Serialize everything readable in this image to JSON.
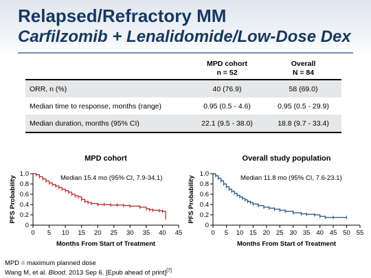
{
  "title": "Relapsed/Refractory MM",
  "subtitle": "Carfilzomib + Lenalidomide/Low-Dose Dex",
  "table": {
    "headers": [
      {
        "line1": "",
        "line2": ""
      },
      {
        "line1": "MPD cohort",
        "line2": "n = 52"
      },
      {
        "line1": "Overall",
        "line2": "N = 84"
      }
    ],
    "rows": [
      {
        "label": "ORR, n (%)",
        "mpd": "40 (76.9)",
        "overall": "58 (69.0)"
      },
      {
        "label": "Median time to response, months (range)",
        "mpd": "0.95 (0.5 - 4.6)",
        "overall": "0.95 (0.5 - 29.9)"
      },
      {
        "label": "Median duration, months (95% CI)",
        "mpd": "22.1 (9.5 - 38.0)",
        "overall": "18.8 (9.7 - 33.4)"
      }
    ]
  },
  "chart_data": [
    {
      "type": "line",
      "title": "MPD cohort",
      "annotation": "Median 15.4 mo (95% CI, 7.9-34.1)",
      "xlabel": "Months From Start of Treatment",
      "ylabel": "PFS Probability",
      "xlim": [
        0,
        45
      ],
      "ylim": [
        0,
        1.0
      ],
      "xticks": [
        0,
        5,
        10,
        15,
        20,
        25,
        30,
        35,
        40,
        45
      ],
      "yticks": [
        0,
        0.2,
        0.4,
        0.6,
        0.8,
        1.0
      ],
      "ytick_labels": [
        "0",
        "0.2",
        "0.4",
        "0.6",
        "0.8",
        "1.0"
      ],
      "color": "#b22222",
      "series": [
        {
          "x": [
            0,
            1,
            2,
            3,
            4,
            5,
            6,
            7,
            8,
            9,
            10,
            11,
            12,
            13,
            14,
            15,
            16,
            17,
            18,
            20,
            22,
            24,
            26,
            28,
            30,
            33,
            35,
            36,
            37,
            39,
            40,
            41
          ],
          "y": [
            1.0,
            0.98,
            0.94,
            0.9,
            0.86,
            0.82,
            0.79,
            0.76,
            0.73,
            0.7,
            0.67,
            0.64,
            0.6,
            0.57,
            0.55,
            0.5,
            0.46,
            0.44,
            0.42,
            0.4,
            0.4,
            0.39,
            0.39,
            0.38,
            0.37,
            0.35,
            0.32,
            0.3,
            0.29,
            0.28,
            0.27,
            0.14
          ]
        }
      ]
    },
    {
      "type": "line",
      "title": "Overall study population",
      "annotation": "Median 11.8 mo (95% CI, 7.6-23.1)",
      "xlabel": "Months From Start of Treatment",
      "ylabel": "PFS Probability",
      "xlim": [
        0,
        55
      ],
      "ylim": [
        0,
        1.0
      ],
      "xticks": [
        0,
        5,
        10,
        15,
        20,
        25,
        30,
        35,
        40,
        45,
        50,
        55
      ],
      "yticks": [
        0,
        0.2,
        0.4,
        0.6,
        0.8,
        1.0
      ],
      "ytick_labels": [
        "0",
        "0.2",
        "0.4",
        "0.6",
        "0.8",
        "1.0"
      ],
      "color": "#1f4e79",
      "series": [
        {
          "x": [
            0,
            1,
            2,
            3,
            4,
            5,
            6,
            7,
            8,
            9,
            10,
            11,
            12,
            13,
            14,
            15,
            17,
            19,
            21,
            23,
            25,
            27,
            30,
            33,
            35,
            38,
            40,
            42,
            45,
            50
          ],
          "y": [
            1.0,
            0.96,
            0.91,
            0.86,
            0.8,
            0.75,
            0.7,
            0.66,
            0.62,
            0.58,
            0.55,
            0.52,
            0.49,
            0.46,
            0.44,
            0.41,
            0.38,
            0.35,
            0.33,
            0.31,
            0.29,
            0.27,
            0.24,
            0.22,
            0.21,
            0.2,
            0.17,
            0.15,
            0.15,
            0.15
          ]
        }
      ]
    }
  ],
  "footer": {
    "line1": "MPD = maximum planned dose",
    "line2_pre": "Wang M, et al. ",
    "line2_journal": "Blood",
    "line2_post": ". 2013 Sep 6. [Epub ahead of print]",
    "line2_ref": "[7]"
  }
}
